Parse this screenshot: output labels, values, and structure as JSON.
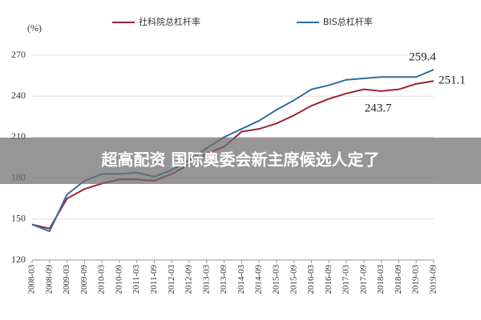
{
  "chart_data": {
    "type": "line",
    "y_unit_label": "(%)",
    "categories": [
      "2008-03",
      "2008-09",
      "2009-03",
      "2009-09",
      "2010-03",
      "2010-09",
      "2011-03",
      "2011-09",
      "2012-03",
      "2012-09",
      "2013-03",
      "2013-09",
      "2014-03",
      "2014-09",
      "2015-03",
      "2015-09",
      "2016-03",
      "2016-09",
      "2017-03",
      "2017-09",
      "2018-03",
      "2018-09",
      "2019-03",
      "2019-09"
    ],
    "series": [
      {
        "name": "社科院总杠杆率",
        "color": "#9b2335",
        "values": [
          146,
          143,
          165,
          172,
          176,
          179,
          179,
          178,
          183,
          190,
          198,
          203,
          214,
          216,
          220,
          226,
          233,
          238,
          242,
          245,
          243.7,
          245,
          249,
          251.1
        ],
        "value_labels": [
          null,
          null,
          null,
          null,
          null,
          null,
          null,
          null,
          null,
          null,
          null,
          null,
          null,
          null,
          null,
          null,
          null,
          null,
          null,
          null,
          "243.7",
          null,
          null,
          "251.1"
        ]
      },
      {
        "name": "BIS总杠杆率",
        "color": "#2e6da4",
        "values": [
          146,
          141,
          168,
          178,
          183,
          183,
          184,
          181,
          186,
          193,
          202,
          210,
          216,
          222,
          230,
          237,
          245,
          248,
          252,
          253,
          254,
          254,
          254,
          259.4
        ],
        "value_labels": [
          null,
          null,
          null,
          null,
          null,
          null,
          null,
          null,
          null,
          null,
          null,
          null,
          null,
          null,
          null,
          null,
          null,
          null,
          null,
          null,
          null,
          null,
          null,
          "259.4"
        ]
      }
    ],
    "ylim": [
      120,
      270
    ],
    "yticks": [
      120,
      150,
      180,
      210,
      240,
      270
    ],
    "grid": true
  },
  "overlay_text": "超高配资 国际奥委会新主席候选人定了"
}
